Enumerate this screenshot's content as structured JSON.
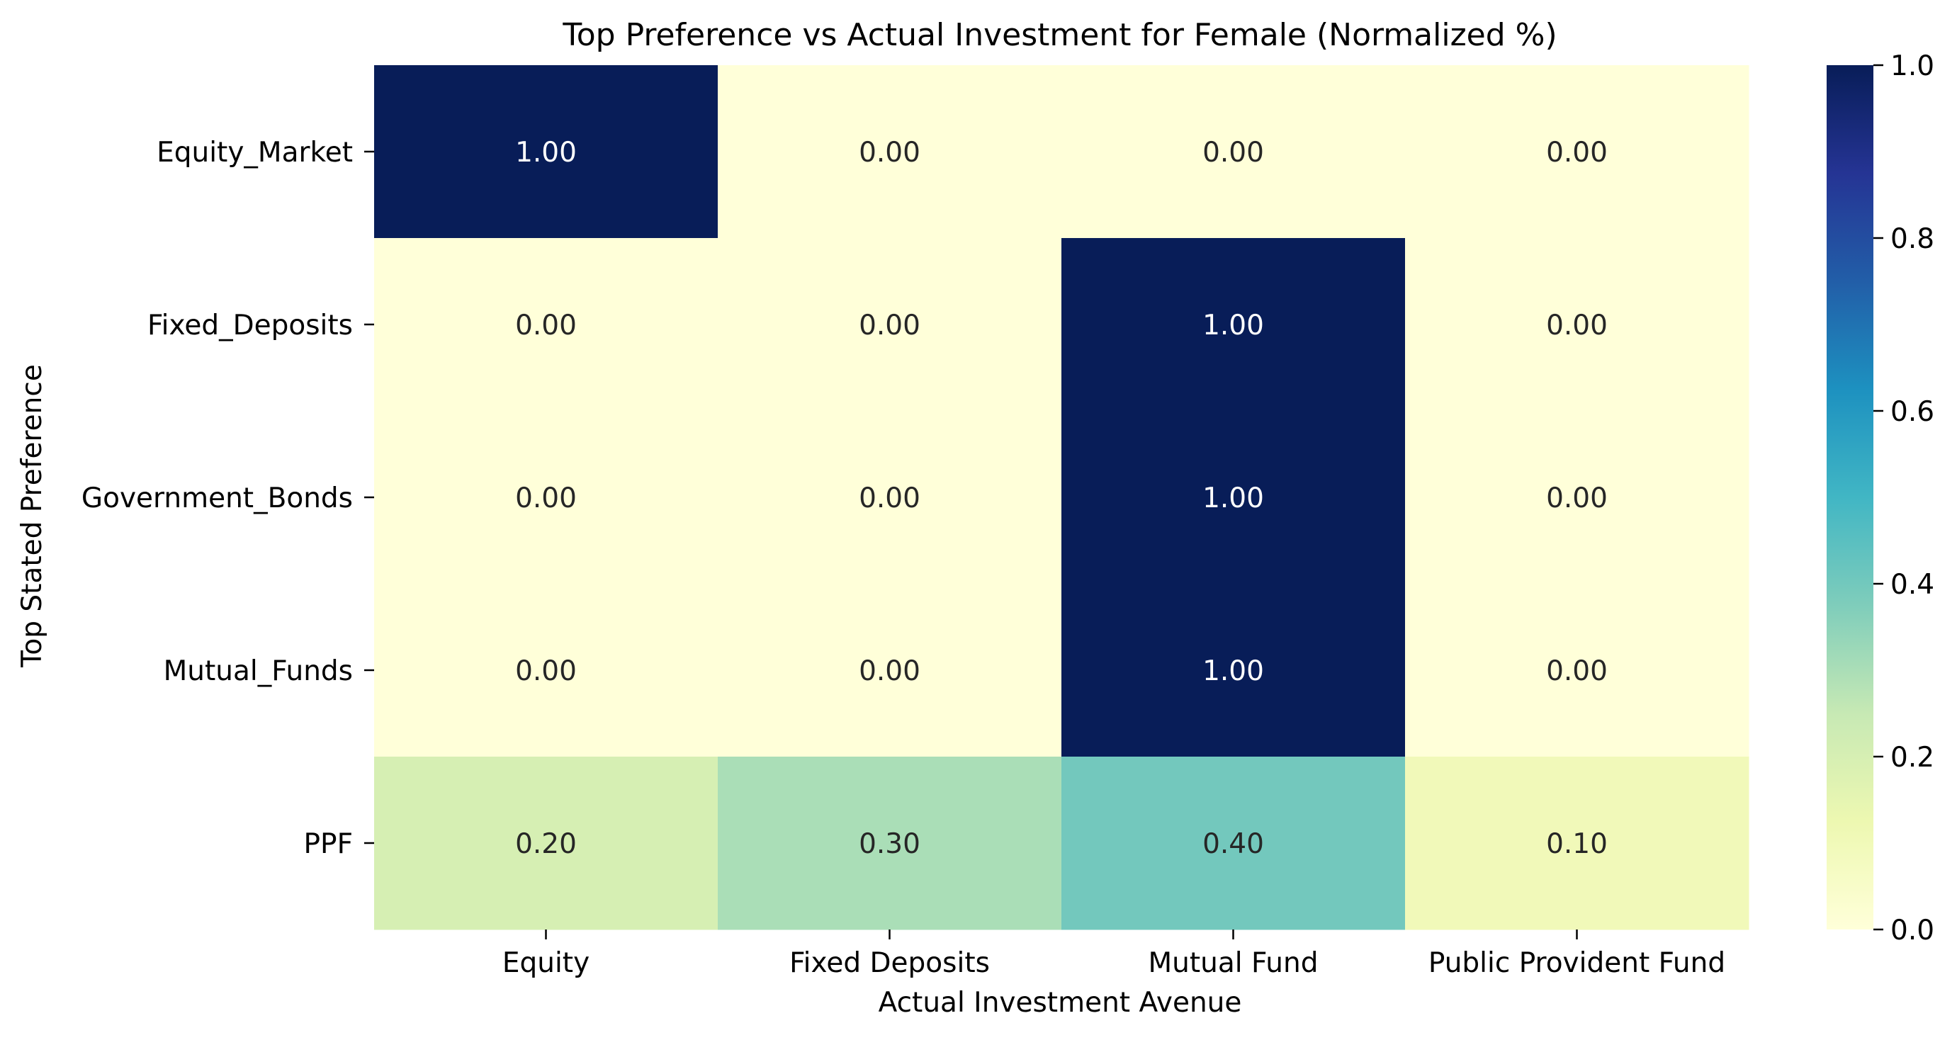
{
  "chart_data": {
    "type": "heatmap",
    "title": "Top Preference vs Actual Investment for Female (Normalized %)",
    "xlabel": "Actual Investment Avenue",
    "ylabel": "Top Stated Preference",
    "x_categories": [
      "Equity",
      "Fixed Deposits",
      "Mutual Fund",
      "Public Provident Fund"
    ],
    "y_categories": [
      "Equity_Market",
      "Fixed_Deposits",
      "Government_Bonds",
      "Mutual_Funds",
      "PPF"
    ],
    "values": [
      [
        1.0,
        0.0,
        0.0,
        0.0
      ],
      [
        0.0,
        0.0,
        1.0,
        0.0
      ],
      [
        0.0,
        0.0,
        1.0,
        0.0
      ],
      [
        0.0,
        0.0,
        1.0,
        0.0
      ],
      [
        0.2,
        0.3,
        0.4,
        0.1
      ]
    ],
    "value_format": "0.00",
    "colormap": "YlGnBu",
    "color_stops": [
      "#ffffd9",
      "#edf8b1",
      "#c7e9b4",
      "#7fcdbb",
      "#41b6c4",
      "#1d91c0",
      "#225ea8",
      "#253494",
      "#081d58"
    ],
    "colorbar": {
      "range": [
        0.0,
        1.0
      ],
      "ticks": [
        0.0,
        0.2,
        0.4,
        0.6,
        0.8,
        1.0
      ],
      "tick_labels": [
        "0.0",
        "0.2",
        "0.4",
        "0.6",
        "0.8",
        "1.0"
      ]
    }
  }
}
